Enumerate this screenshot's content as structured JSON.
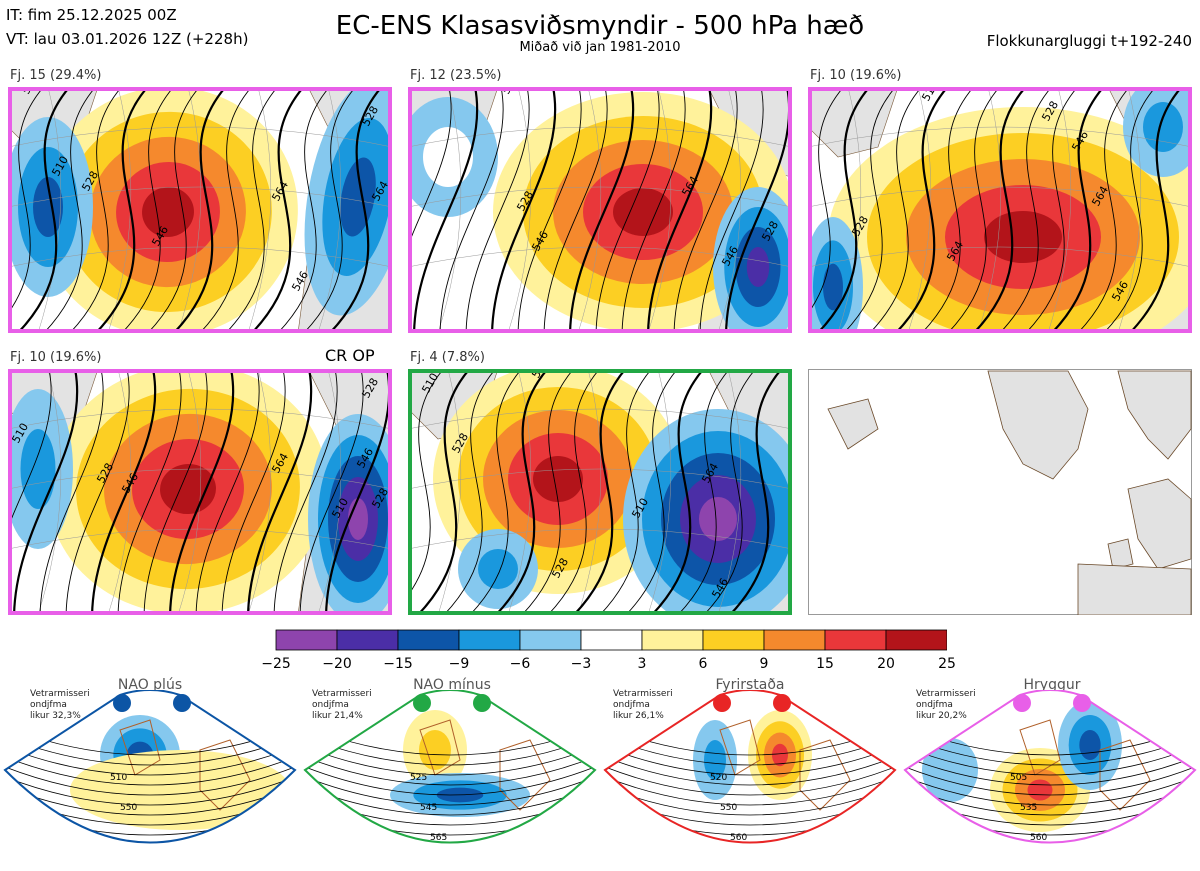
{
  "header": {
    "it_line": "IT: fim 25.12.2025 00Z",
    "vt_line": "VT: lau 03.01.2026 12Z  (+228h)",
    "title": "EC-ENS Klasasviðsmyndir - 500 hPa hæð",
    "subtitle": "Miðað við jan 1981-2010",
    "window": "Flokkunargluggi t+192-240"
  },
  "panels": [
    {
      "label": "Fj. 15 (29.4%)",
      "regime": "Hryggur",
      "border_color": "#e85fe8",
      "contour_labels": [
        "510",
        "528",
        "546",
        "564",
        "546",
        "528",
        "564",
        "510"
      ]
    },
    {
      "label": "Fj. 12 (23.5%)",
      "regime": "Hryggur",
      "border_color": "#e85fe8",
      "contour_labels": [
        "510",
        "528",
        "546",
        "564",
        "546",
        "528"
      ]
    },
    {
      "label": "Fj. 10 (19.6%)",
      "regime": "Hryggur",
      "border_color": "#e85fe8",
      "contour_labels": [
        "510",
        "528",
        "546",
        "564",
        "546",
        "528",
        "564"
      ]
    },
    {
      "label": "Fj. 10 (19.6%)",
      "regime": "Hryggur",
      "border_color": "#e85fe8",
      "tag": "CR OP",
      "contour_labels": [
        "510",
        "528",
        "546",
        "564",
        "546",
        "528",
        "510",
        "528"
      ]
    },
    {
      "label": "Fj. 4 (7.8%)",
      "regime": "NAO mínus",
      "border_color": "#22a845",
      "contour_labels": [
        "510",
        "528",
        "546",
        "564",
        "510",
        "528",
        "546"
      ]
    }
  ],
  "colorbar": {
    "ticks": [
      "−25",
      "−20",
      "−15",
      "−9",
      "−6",
      "−3",
      "3",
      "6",
      "9",
      "15",
      "20",
      "25"
    ],
    "colors": [
      "#8e44ad",
      "#4b2ea6",
      "#0d55a8",
      "#1a98dd",
      "#85c8ee",
      "#ffffff",
      "#fff29b",
      "#fccf23",
      "#f5892d",
      "#e9373a",
      "#b3141a"
    ]
  },
  "regimes": [
    {
      "name": "NAO plús",
      "color": "#0c55a5",
      "note": "Vetrarmisseri\nondjfma\nlikur 32,3%",
      "contours": [
        "510",
        "550"
      ]
    },
    {
      "name": "NAO mínus",
      "color": "#22a845",
      "note": "Vetrarmisseri\nondjfma\nlikur 21,4%",
      "contours": [
        "525",
        "545",
        "565"
      ]
    },
    {
      "name": "Fyrirstaða",
      "color": "#e82525",
      "note": "Vetrarmisseri\nondjfma\nlikur 26,1%",
      "contours": [
        "520",
        "550",
        "560"
      ]
    },
    {
      "name": "Hryggur",
      "color": "#e85fe8",
      "note": "Vetrarmisseri\nondjfma\nlikur 20,2%",
      "contours": [
        "505",
        "535",
        "560"
      ]
    }
  ]
}
